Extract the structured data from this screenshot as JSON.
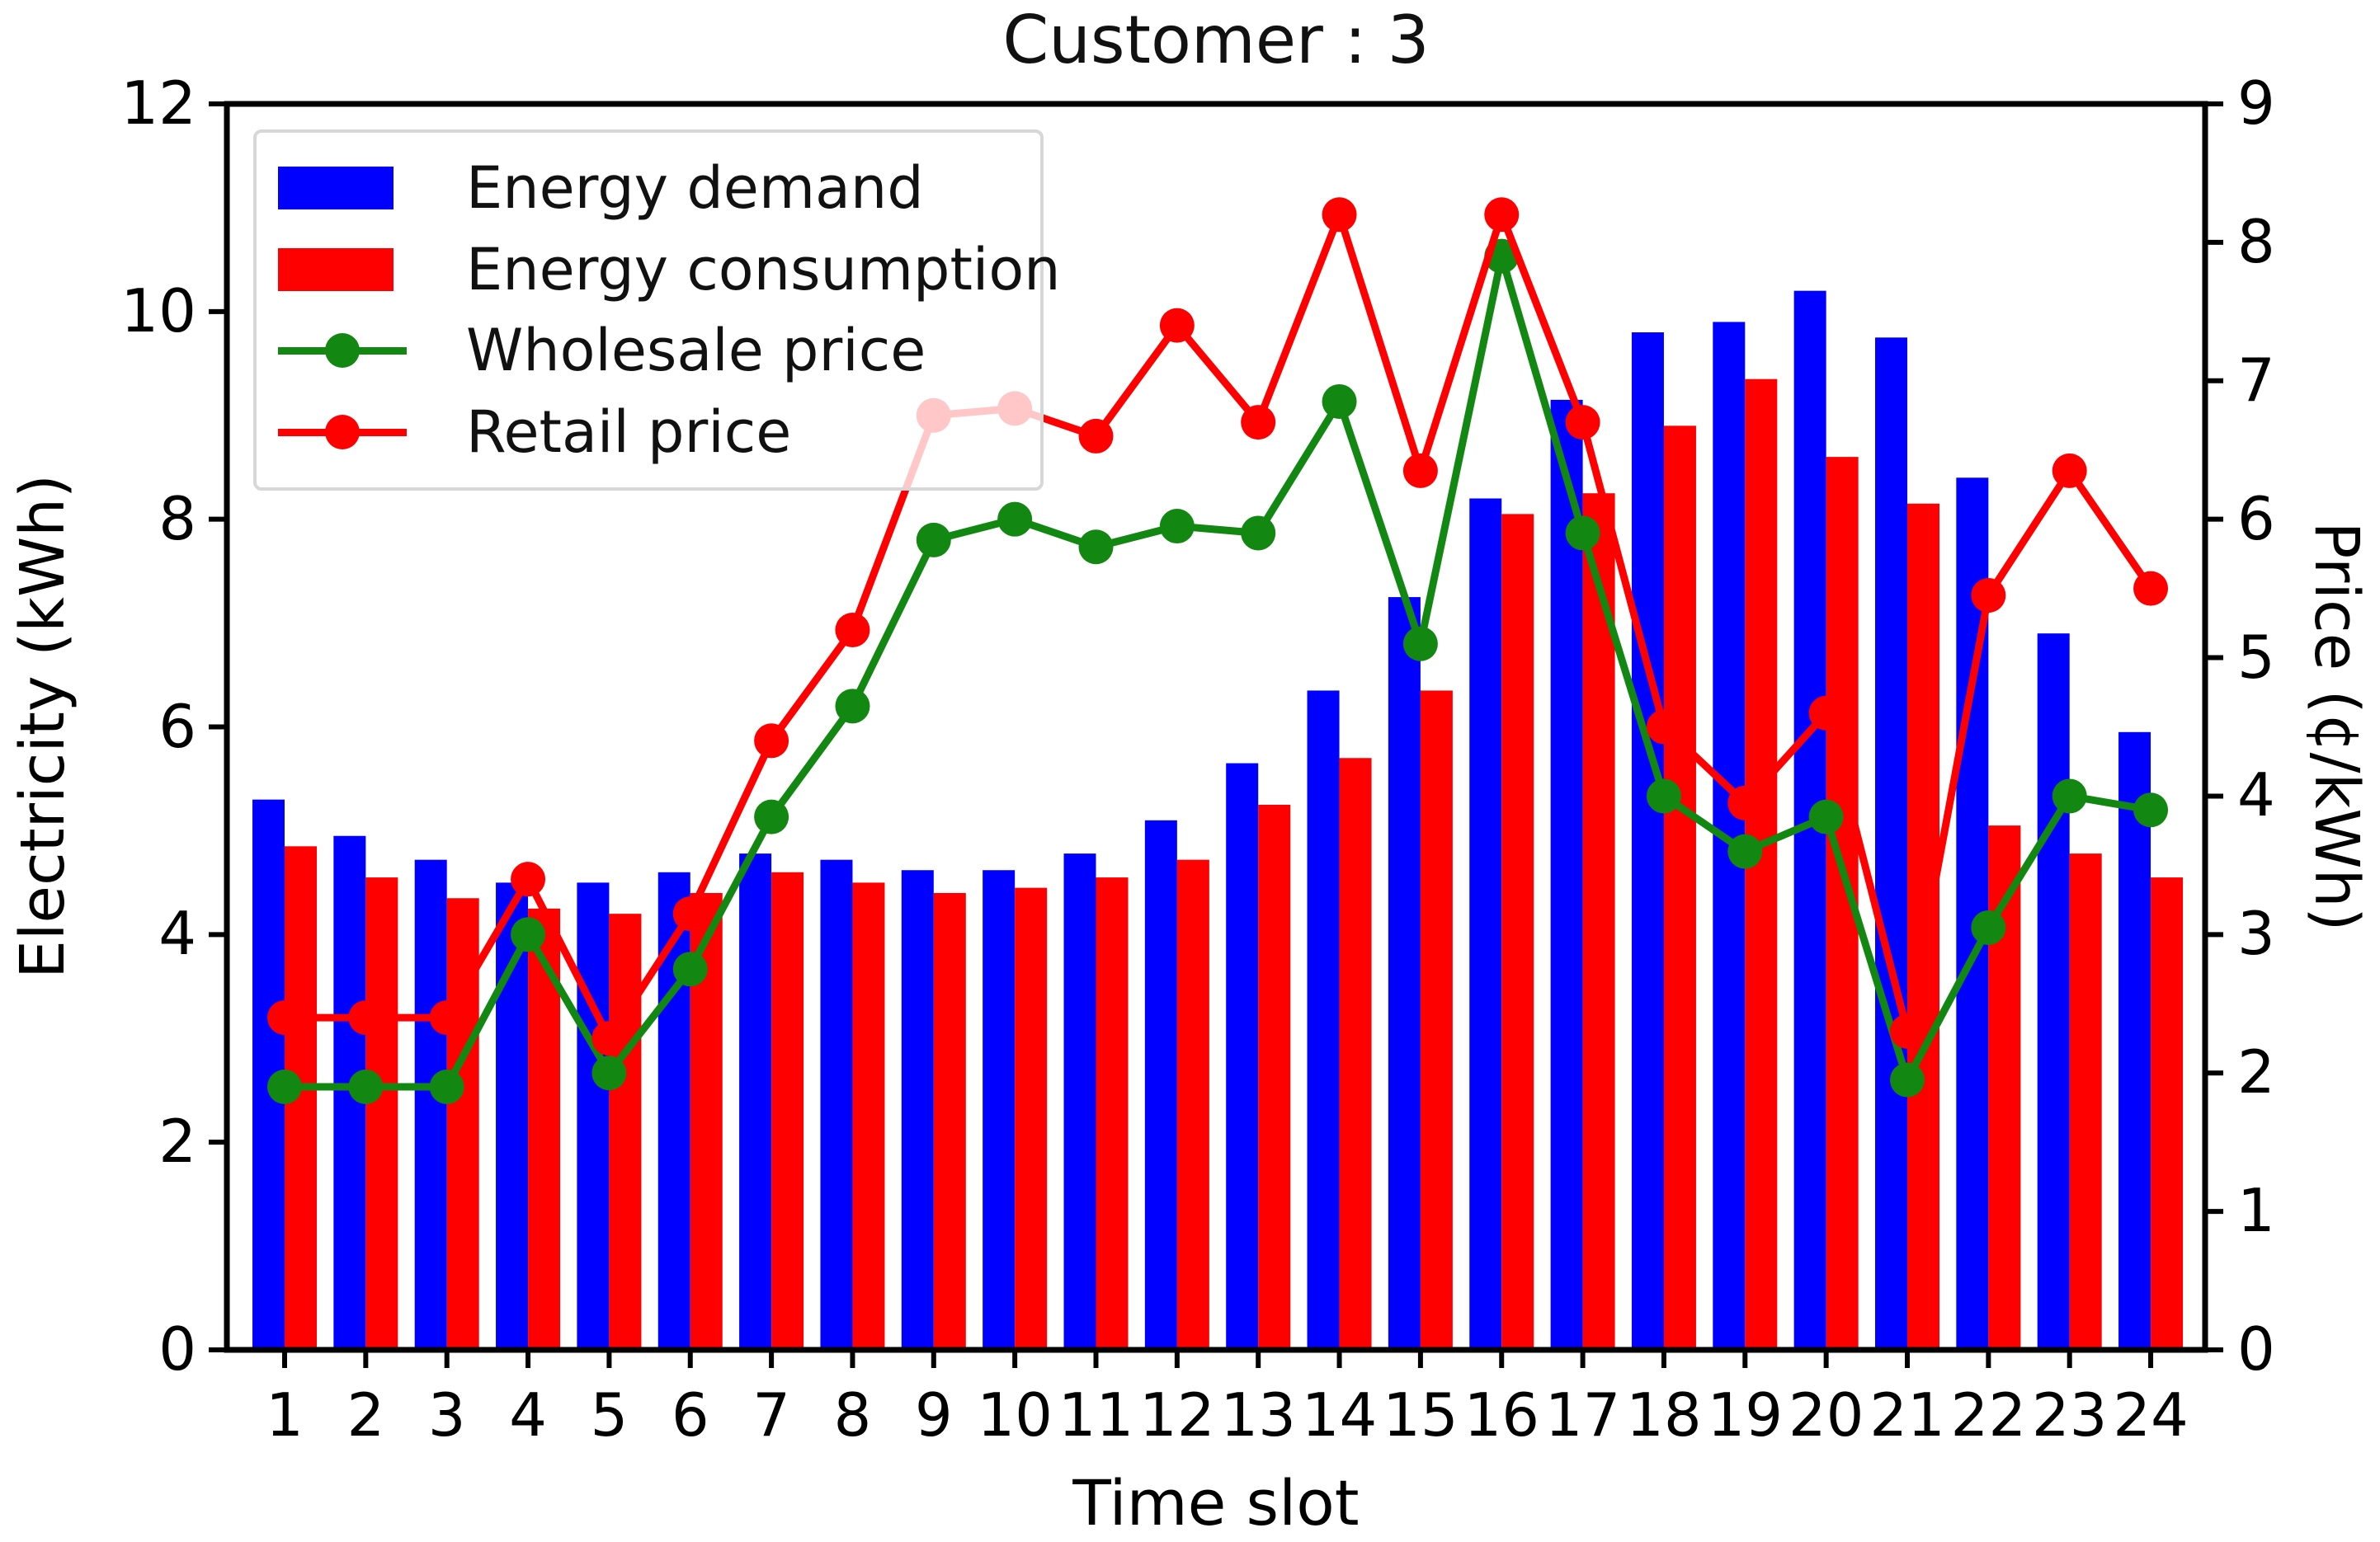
{
  "title": "Customer : 3",
  "axes": {
    "x_label": "Time slot",
    "left_label": "Electricity (kWh)",
    "right_label": "Price (¢/kWh)",
    "left_ticks": [
      "0",
      "2",
      "4",
      "6",
      "8",
      "10",
      "12"
    ],
    "right_ticks": [
      "0",
      "1",
      "2",
      "3",
      "4",
      "5",
      "6",
      "7",
      "8",
      "9"
    ],
    "x_ticks": [
      "1",
      "2",
      "3",
      "4",
      "5",
      "6",
      "7",
      "8",
      "9",
      "10",
      "11",
      "12",
      "13",
      "14",
      "15",
      "16",
      "17",
      "18",
      "19",
      "20",
      "21",
      "22",
      "23",
      "24"
    ]
  },
  "legend": {
    "items": [
      {
        "label": "Energy demand",
        "type": "bar",
        "color": "#0000ff"
      },
      {
        "label": "Energy consumption",
        "type": "bar",
        "color": "#ff0000"
      },
      {
        "label": "Wholesale price",
        "type": "line",
        "color": "#128712"
      },
      {
        "label": "Retail price",
        "type": "line",
        "color": "#ff0000"
      }
    ]
  },
  "chart_data": {
    "type": "bar",
    "subtype": "grouped-bars-with-lines",
    "title": "Customer : 3",
    "xlabel": "Time slot",
    "ylabel_left": "Electricity (kWh)",
    "ylabel_right": "Price (¢/kWh)",
    "ylim_left": [
      0,
      12
    ],
    "ylim_right": [
      0,
      9
    ],
    "grid": false,
    "legend_position": "upper left",
    "legend_framealpha": 0.78,
    "categories": [
      1,
      2,
      3,
      4,
      5,
      6,
      7,
      8,
      9,
      10,
      11,
      12,
      13,
      14,
      15,
      16,
      17,
      18,
      19,
      20,
      21,
      22,
      23,
      24
    ],
    "series": [
      {
        "name": "Energy demand",
        "type": "bar",
        "axis": "left",
        "color": "#0000ff",
        "values": [
          5.3,
          4.95,
          4.72,
          4.5,
          4.5,
          4.6,
          4.78,
          4.72,
          4.62,
          4.62,
          4.78,
          5.1,
          5.65,
          6.35,
          7.25,
          8.2,
          9.15,
          9.8,
          9.9,
          10.2,
          9.75,
          8.4,
          6.9,
          5.95
        ]
      },
      {
        "name": "Energy consumption",
        "type": "bar",
        "axis": "left",
        "color": "#ff0000",
        "values": [
          4.85,
          4.55,
          4.35,
          4.25,
          4.2,
          4.4,
          4.6,
          4.5,
          4.4,
          4.45,
          4.55,
          4.72,
          5.25,
          5.7,
          6.35,
          8.05,
          8.25,
          8.9,
          9.35,
          8.6,
          8.15,
          5.05,
          4.78,
          4.55
        ]
      },
      {
        "name": "Wholesale price",
        "type": "line",
        "axis": "right",
        "color": "#128712",
        "values": [
          1.9,
          1.9,
          1.9,
          3.0,
          2.0,
          2.75,
          3.85,
          4.65,
          5.85,
          6.0,
          5.8,
          5.95,
          5.9,
          6.85,
          5.1,
          7.9,
          5.9,
          4.0,
          3.6,
          3.85,
          1.95,
          3.05,
          4.0,
          3.9
        ]
      },
      {
        "name": "Retail price",
        "type": "line",
        "axis": "right",
        "color": "#ff0000",
        "values": [
          2.4,
          2.4,
          2.4,
          3.4,
          2.25,
          3.15,
          4.4,
          5.2,
          6.75,
          6.8,
          6.6,
          7.4,
          6.7,
          8.2,
          6.35,
          8.2,
          6.7,
          4.5,
          3.95,
          4.6,
          2.3,
          5.45,
          6.35,
          5.5
        ]
      }
    ]
  }
}
